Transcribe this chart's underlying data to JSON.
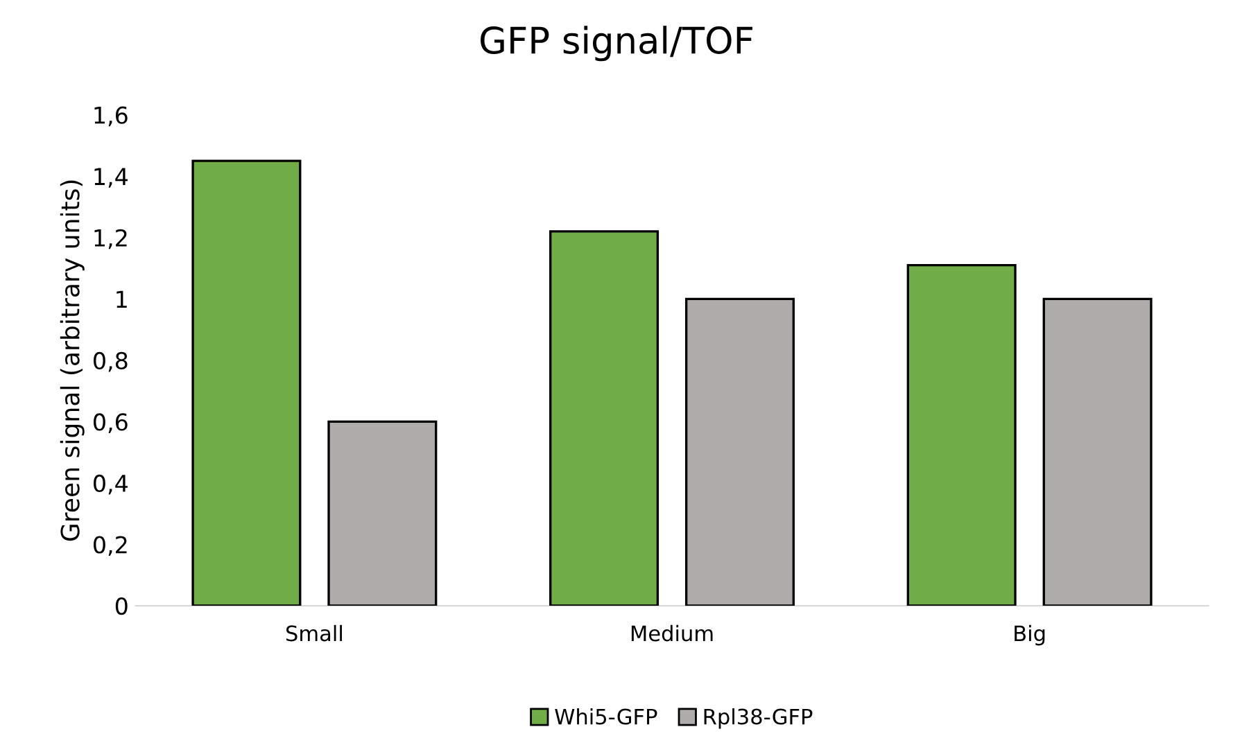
{
  "chart_data": {
    "type": "bar",
    "title": "GFP signal/TOF",
    "ylabel": "Green signal (arbitrary units)",
    "categories": [
      "Small",
      "Medium",
      "Big"
    ],
    "series": [
      {
        "name": "Whi5-GFP",
        "color": "#70ad47",
        "values": [
          1.45,
          1.22,
          1.11
        ]
      },
      {
        "name": "Rpl38-GFP",
        "color": "#afabab",
        "values": [
          0.6,
          1.0,
          1.0
        ]
      }
    ],
    "ylim": [
      0,
      1.6
    ],
    "yticks": [
      {
        "value": 0,
        "label": "0"
      },
      {
        "value": 0.2,
        "label": "0,2"
      },
      {
        "value": 0.4,
        "label": "0,4"
      },
      {
        "value": 0.6,
        "label": "0,6"
      },
      {
        "value": 0.8,
        "label": "0,8"
      },
      {
        "value": 1,
        "label": "1"
      },
      {
        "value": 1.2,
        "label": "1,2"
      },
      {
        "value": 1.4,
        "label": "1,4"
      },
      {
        "value": 1.6,
        "label": "1,6"
      }
    ],
    "grid": false,
    "legend": "bottom"
  }
}
